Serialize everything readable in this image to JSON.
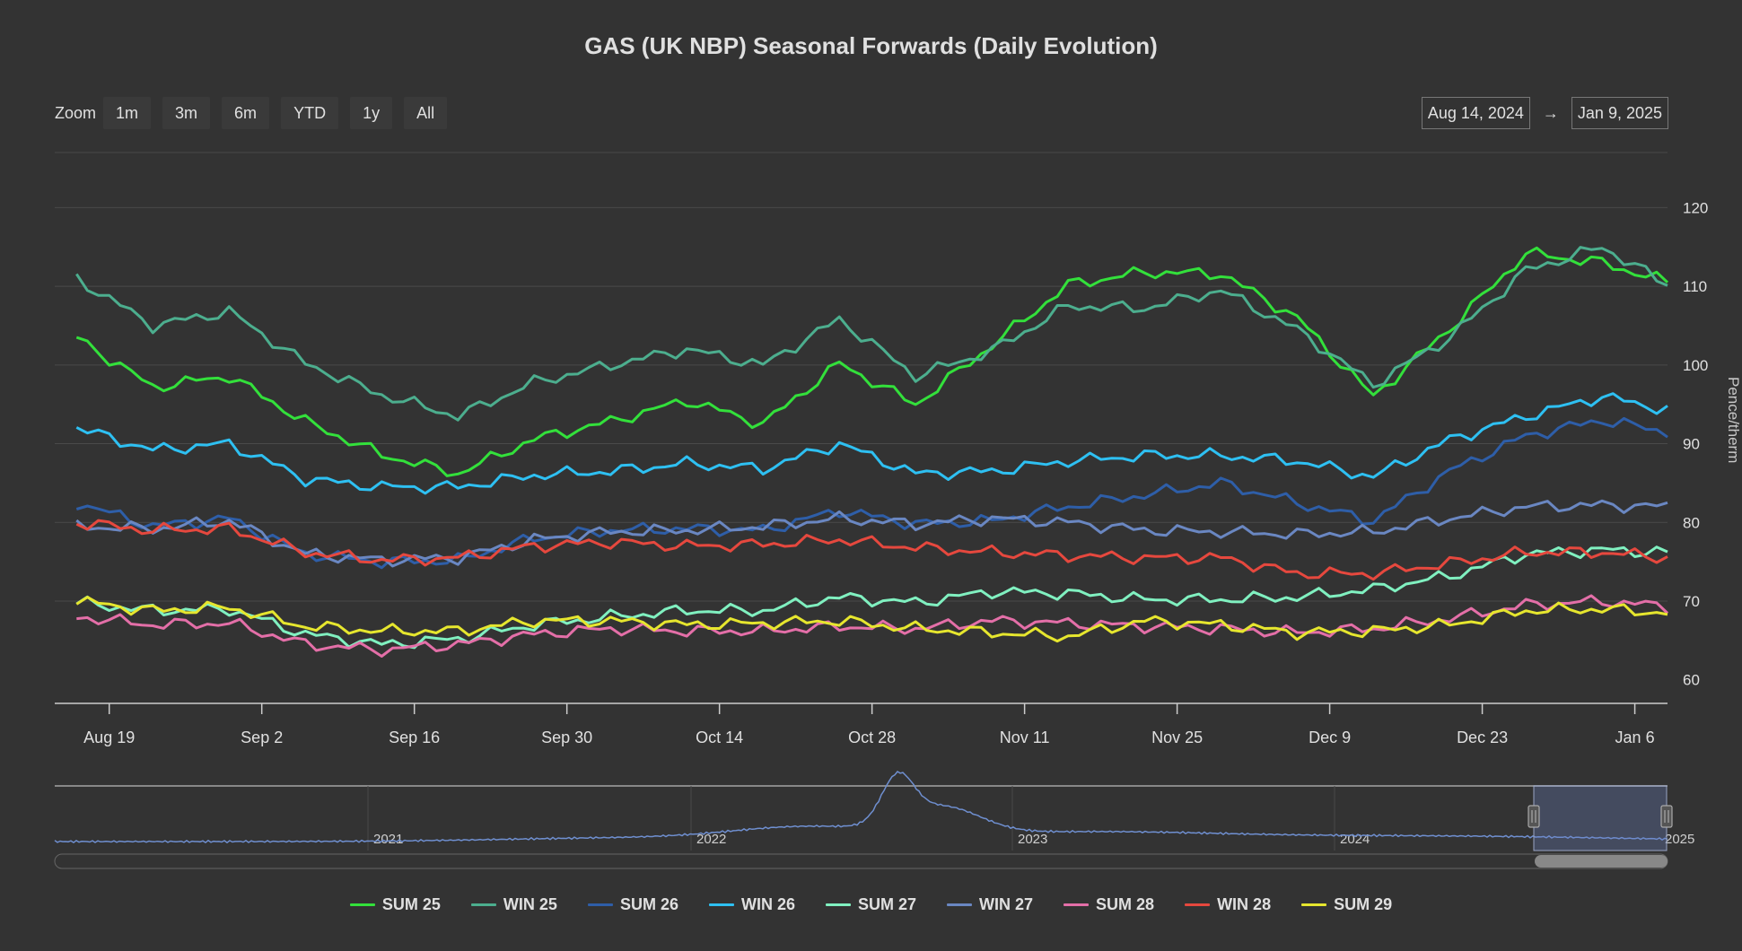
{
  "zoom": {
    "label": "Zoom",
    "buttons": [
      "1m",
      "3m",
      "6m",
      "YTD",
      "1y",
      "All"
    ]
  },
  "range": {
    "from": "Aug 14, 2024",
    "arrow": "→",
    "to": "Jan 9, 2025"
  },
  "navigator": {
    "year_labels": [
      "2021",
      "2022",
      "2023",
      "2024",
      "2025"
    ]
  },
  "chart_data": {
    "type": "line",
    "title": "GAS (UK NBP) Seasonal Forwards (Daily Evolution)",
    "ylabel": "Pence/therm",
    "ylim": [
      57,
      127
    ],
    "x_start": "2024-08-14",
    "x_end": "2025-01-09",
    "x_tick_labels": [
      "Aug 19",
      "Sep 2",
      "Sep 16",
      "Sep 30",
      "Oct 14",
      "Oct 28",
      "Nov 11",
      "Nov 25",
      "Dec 9",
      "Dec 23",
      "Jan 6"
    ],
    "y_ticks": [
      60,
      70,
      80,
      90,
      100,
      110,
      120
    ],
    "grid": true,
    "legend_position": "bottom-center",
    "x": [
      "2024-08-16",
      "2024-08-23",
      "2024-08-30",
      "2024-09-06",
      "2024-09-13",
      "2024-09-20",
      "2024-09-27",
      "2024-10-04",
      "2024-10-11",
      "2024-10-18",
      "2024-10-25",
      "2024-11-01",
      "2024-11-08",
      "2024-11-15",
      "2024-11-22",
      "2024-11-29",
      "2024-12-06",
      "2024-12-13",
      "2024-12-20",
      "2024-12-27",
      "2025-01-03",
      "2025-01-09"
    ],
    "series": [
      {
        "name": "SUM 25",
        "color": "#33e03b",
        "values": [
          103.5,
          97.2,
          98.6,
          92.8,
          88.6,
          86.2,
          90.6,
          92.8,
          95.5,
          92.5,
          100.2,
          95.0,
          102.5,
          110.2,
          111.8,
          111.6,
          106.0,
          96.0,
          104.6,
          114.2,
          113.0,
          110.5
        ]
      },
      {
        "name": "WIN 25",
        "color": "#4cae8e",
        "values": [
          111.0,
          105.0,
          106.8,
          100.2,
          96.2,
          93.5,
          97.8,
          100.0,
          102.0,
          100.0,
          105.8,
          98.6,
          101.8,
          107.5,
          107.2,
          109.5,
          104.5,
          97.5,
          103.5,
          112.0,
          115.0,
          110.2
        ]
      },
      {
        "name": "SUM 26",
        "color": "#2e5ea8",
        "values": [
          82.5,
          79.5,
          80.5,
          76.0,
          75.0,
          75.2,
          78.0,
          79.0,
          79.2,
          79.0,
          81.5,
          79.8,
          80.2,
          82.0,
          83.5,
          85.0,
          82.5,
          80.2,
          86.5,
          91.0,
          93.0,
          91.5
        ]
      },
      {
        "name": "WIN 26",
        "color": "#2ec0f2",
        "values": [
          92.0,
          89.2,
          90.0,
          85.5,
          84.5,
          84.5,
          86.0,
          86.5,
          87.5,
          86.8,
          90.0,
          86.2,
          86.5,
          87.8,
          88.5,
          88.5,
          87.8,
          85.8,
          90.5,
          93.5,
          96.0,
          94.3
        ]
      },
      {
        "name": "SUM 27",
        "color": "#80f0c0",
        "values": [
          69.8,
          68.8,
          69.0,
          65.8,
          64.5,
          65.2,
          67.0,
          68.0,
          68.8,
          68.8,
          70.5,
          69.8,
          71.2,
          71.0,
          70.2,
          70.2,
          70.5,
          71.5,
          73.2,
          76.0,
          76.5,
          76.2
        ]
      },
      {
        "name": "WIN 27",
        "color": "#6a87c2",
        "values": [
          79.5,
          79.2,
          80.2,
          76.0,
          75.2,
          75.5,
          77.8,
          78.8,
          79.0,
          79.5,
          80.5,
          79.8,
          80.5,
          80.0,
          79.0,
          78.8,
          78.5,
          78.8,
          80.5,
          82.0,
          82.2,
          82.0
        ]
      },
      {
        "name": "SUM 28",
        "color": "#e46fa8",
        "values": [
          68.0,
          67.0,
          67.2,
          64.5,
          63.8,
          64.5,
          65.8,
          66.5,
          66.2,
          66.2,
          66.8,
          66.5,
          67.5,
          67.2,
          66.8,
          66.5,
          66.0,
          66.5,
          67.8,
          69.5,
          70.0,
          69.3
        ]
      },
      {
        "name": "WIN 28",
        "color": "#e6483e",
        "values": [
          80.0,
          79.0,
          79.2,
          76.2,
          75.2,
          75.5,
          77.0,
          77.5,
          77.0,
          77.2,
          77.8,
          76.8,
          76.2,
          75.8,
          75.5,
          75.5,
          73.5,
          73.5,
          74.8,
          76.2,
          76.2,
          75.5
        ]
      },
      {
        "name": "SUM 29",
        "color": "#e6e62e",
        "values": [
          70.0,
          68.8,
          69.2,
          66.8,
          66.2,
          66.2,
          67.5,
          67.5,
          67.0,
          67.2,
          67.5,
          66.5,
          66.0,
          65.5,
          67.5,
          67.0,
          66.0,
          66.2,
          67.0,
          68.8,
          69.0,
          68.5
        ]
      }
    ]
  }
}
